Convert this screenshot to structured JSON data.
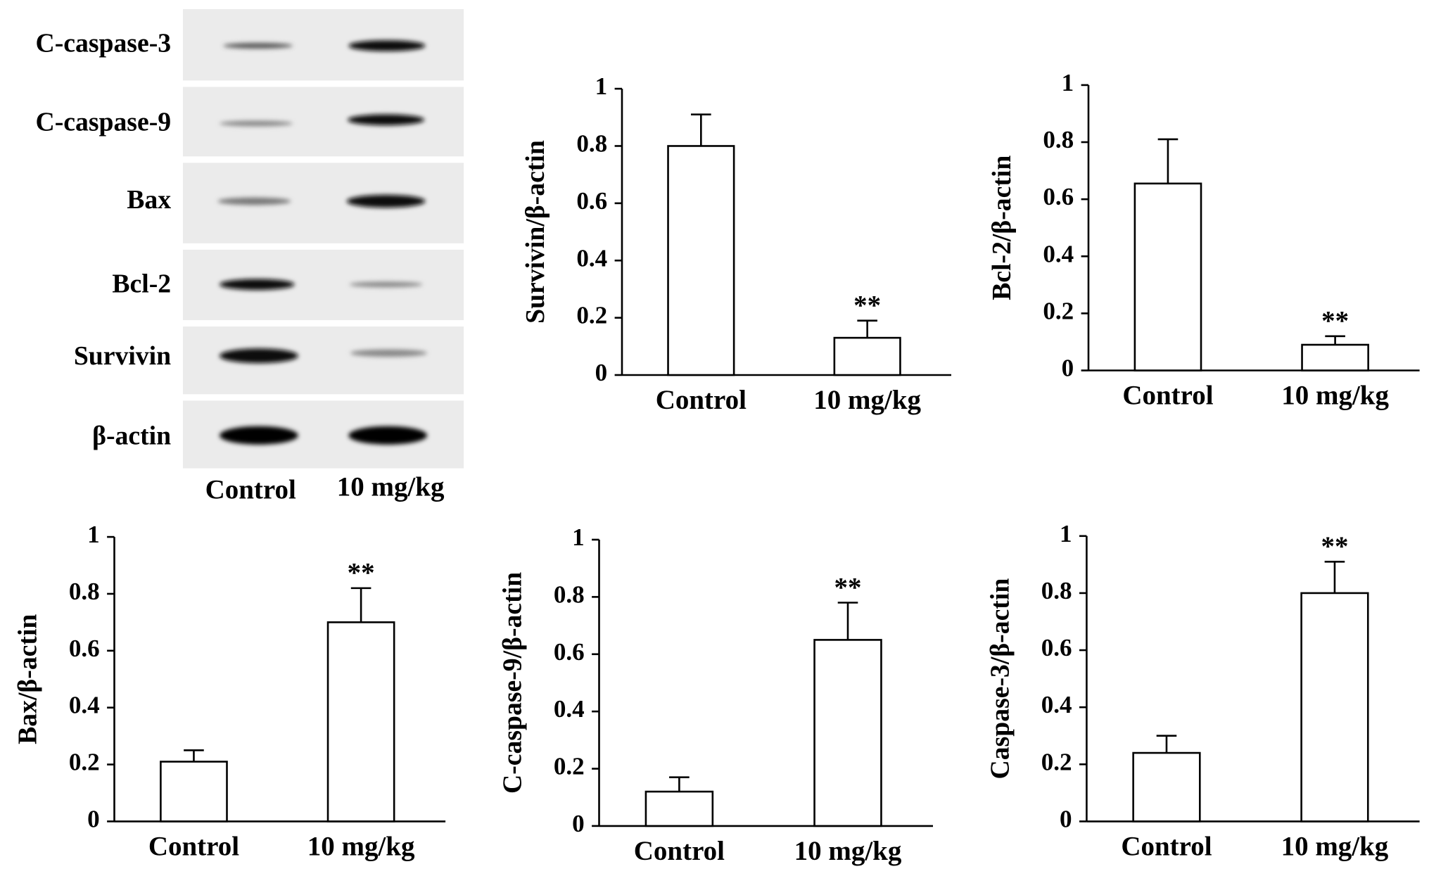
{
  "blot": {
    "row_labels": [
      "C-caspase-3",
      "C-caspase-9",
      "Bax",
      "Bcl-2",
      "Survivin",
      "β-actin"
    ],
    "column_labels": [
      "Control",
      "10 mg/kg"
    ]
  },
  "chart_data": [
    {
      "type": "bar",
      "ylabel": "Survivin/β-actin",
      "categories": [
        "Control",
        "10 mg/kg"
      ],
      "values": [
        0.8,
        0.13
      ],
      "errors": [
        0.11,
        0.06
      ],
      "annotations": [
        {
          "category": "10 mg/kg",
          "text": "**"
        }
      ],
      "color": "#ffffff",
      "ylim": [
        0,
        1
      ],
      "yticks": [
        0,
        0.2,
        0.4,
        0.6,
        0.8,
        1
      ]
    },
    {
      "type": "bar",
      "ylabel": "Bcl-2/β-actin",
      "categories": [
        "Control",
        "10 mg/kg"
      ],
      "values": [
        0.655,
        0.09
      ],
      "errors": [
        0.155,
        0.03
      ],
      "annotations": [
        {
          "category": "10 mg/kg",
          "text": "**"
        }
      ],
      "color": "#ffffff",
      "ylim": [
        0,
        1
      ],
      "yticks": [
        0,
        0.2,
        0.4,
        0.6,
        0.8,
        1
      ]
    },
    {
      "type": "bar",
      "ylabel": "Bax/β-actin",
      "categories": [
        "Control",
        "10 mg/kg"
      ],
      "values": [
        0.21,
        0.7
      ],
      "errors": [
        0.04,
        0.12
      ],
      "annotations": [
        {
          "category": "10 mg/kg",
          "text": "**"
        }
      ],
      "color": "#ffffff",
      "ylim": [
        0,
        1
      ],
      "yticks": [
        0,
        0.2,
        0.4,
        0.6,
        0.8,
        1
      ]
    },
    {
      "type": "bar",
      "ylabel": "C-caspase-9/β-actin",
      "categories": [
        "Control",
        "10 mg/kg"
      ],
      "values": [
        0.12,
        0.65
      ],
      "errors": [
        0.05,
        0.13
      ],
      "annotations": [
        {
          "category": "10 mg/kg",
          "text": "**"
        }
      ],
      "color": "#ffffff",
      "ylim": [
        0,
        1
      ],
      "yticks": [
        0,
        0.2,
        0.4,
        0.6,
        0.8,
        1
      ]
    },
    {
      "type": "bar",
      "ylabel": "Caspase-3/β-actin",
      "categories": [
        "Control",
        "10 mg/kg"
      ],
      "values": [
        0.24,
        0.8
      ],
      "errors": [
        0.06,
        0.11
      ],
      "annotations": [
        {
          "category": "10 mg/kg",
          "text": "**"
        }
      ],
      "color": "#ffffff",
      "ylim": [
        0,
        1
      ],
      "yticks": [
        0,
        0.2,
        0.4,
        0.6,
        0.8,
        1
      ]
    }
  ]
}
